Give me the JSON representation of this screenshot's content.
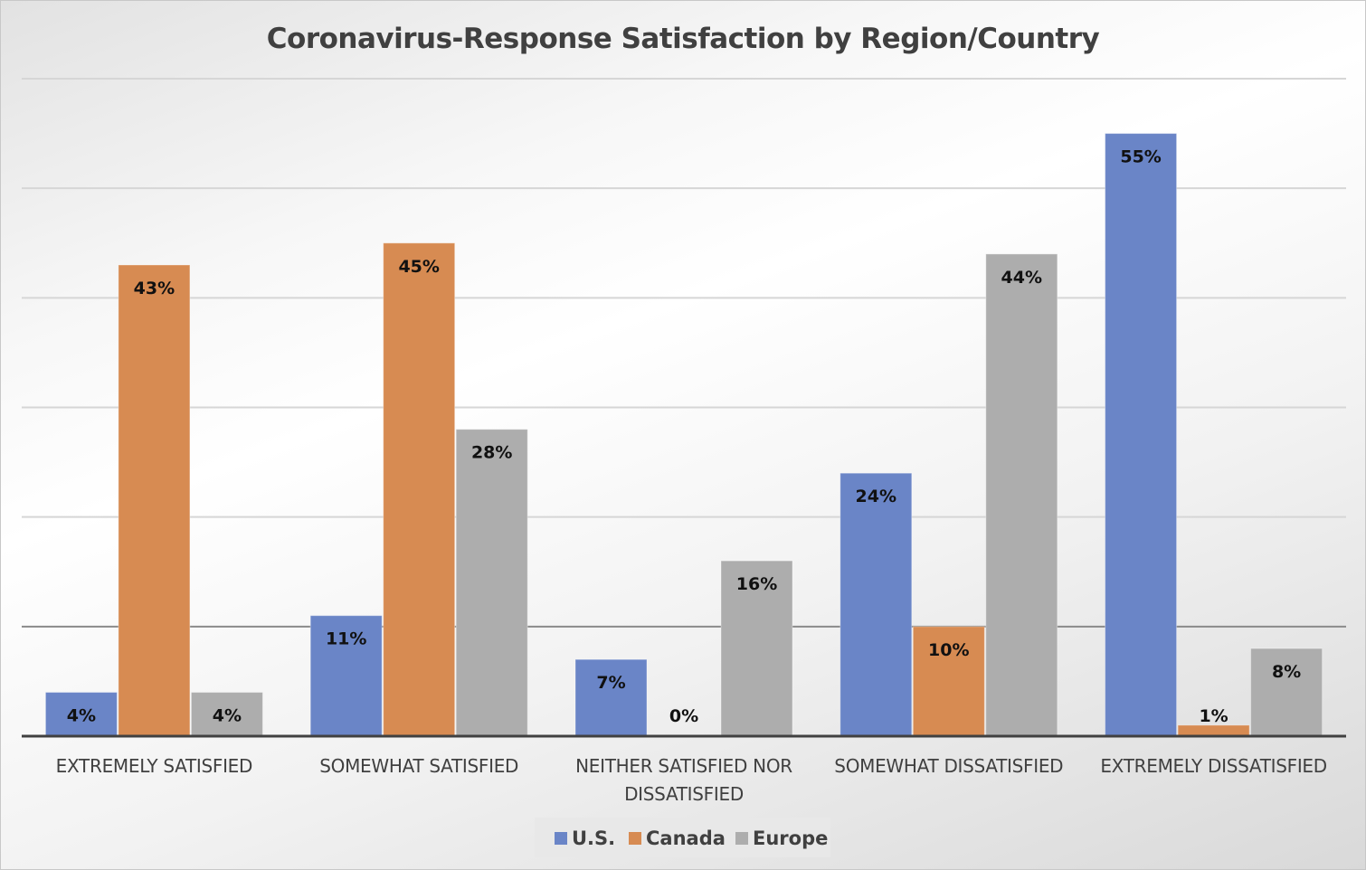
{
  "chart_data": {
    "type": "bar",
    "title": "Coronavirus-Response Satisfaction by Region/Country",
    "xlabel": "",
    "ylabel": "",
    "ylim": [
      0,
      60
    ],
    "ytick_step": 10,
    "y_tick_labels_shown": false,
    "grid": true,
    "legend_position": "bottom",
    "categories": [
      [
        "EXTREMELY SATISFIED"
      ],
      [
        "SOMEWHAT SATISFIED"
      ],
      [
        "NEITHER SATISFIED NOR",
        "DISSATISFIED"
      ],
      [
        "SOMEWHAT DISSATISFIED"
      ],
      [
        "EXTREMELY DISSATISFIED"
      ]
    ],
    "series": [
      {
        "name": "U.S.",
        "color": "#6a85c7",
        "values": [
          4,
          11,
          7,
          24,
          55
        ],
        "labels": [
          "4%",
          "11%",
          "7%",
          "24%",
          "55%"
        ]
      },
      {
        "name": "Canada",
        "color": "#d78b52",
        "values": [
          43,
          45,
          0,
          10,
          1
        ],
        "labels": [
          "43%",
          "45%",
          "0%",
          "10%",
          "1%"
        ]
      },
      {
        "name": "Europe",
        "color": "#adadad",
        "values": [
          4,
          28,
          16,
          44,
          8
        ],
        "labels": [
          "4%",
          "28%",
          "16%",
          "44%",
          "8%"
        ]
      }
    ]
  }
}
